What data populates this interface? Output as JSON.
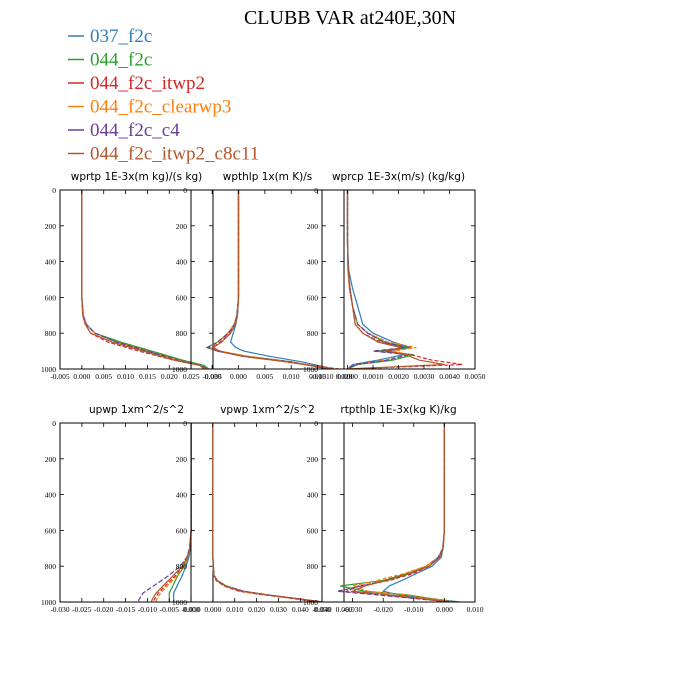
{
  "figure": {
    "title": "CLUBB VAR at240E,30N"
  },
  "legend": [
    {
      "label": "037_f2c",
      "color": "#2f7fb8"
    },
    {
      "label": "044_f2c",
      "color": "#2ca02c"
    },
    {
      "label": "044_f2c_itwp2",
      "color": "#d62728"
    },
    {
      "label": "044_f2c_clearwp3",
      "color": "#ff7f0e"
    },
    {
      "label": "044_f2c_c4",
      "color": "#6a3d9a"
    },
    {
      "label": "044_f2c_itwp2_c8c11",
      "color": "#b5562a"
    }
  ],
  "chart_data": [
    {
      "type": "line",
      "title": "wprtp  1E-3x(m kg)/(s kg)",
      "xlim": [
        -0.005,
        0.03
      ],
      "xticks": [
        "-0.005",
        "0.000",
        "0.005",
        "0.010",
        "0.015",
        "0.020",
        "0.025",
        "0.030"
      ],
      "xtick_values": [
        -0.005,
        0,
        0.005,
        0.01,
        0.015,
        0.02,
        0.025,
        0.03
      ],
      "ylim": [
        0,
        1000
      ],
      "yticks": [
        "0",
        "200",
        "400",
        "600",
        "800",
        "1000"
      ],
      "y_inverted": true,
      "y": [
        0,
        200,
        400,
        600,
        700,
        750,
        800,
        850,
        900,
        950,
        980,
        1000
      ],
      "series": [
        {
          "name": "037_f2c",
          "x": [
            0,
            0,
            0,
            0,
            0.0003,
            0.001,
            0.003,
            0.008,
            0.015,
            0.022,
            0.027,
            0.029
          ]
        },
        {
          "name": "044_f2c",
          "x": [
            0,
            0,
            0,
            0,
            0.0003,
            0.001,
            0.003,
            0.009,
            0.016,
            0.023,
            0.028,
            0.029
          ]
        },
        {
          "name": "044_f2c_itwp2",
          "x": [
            0,
            0,
            0,
            0,
            0.0002,
            0.0008,
            0.002,
            0.006,
            0.013,
            0.021,
            0.027,
            0.028
          ]
        },
        {
          "name": "044_f2c_clearwp3",
          "x": [
            0,
            0,
            0,
            0,
            0.0003,
            0.001,
            0.003,
            0.008,
            0.015,
            0.022,
            0.027,
            0.029
          ]
        },
        {
          "name": "044_f2c_c4",
          "x": [
            0,
            0,
            0,
            0,
            0.0003,
            0.001,
            0.003,
            0.008,
            0.015,
            0.022,
            0.027,
            0.029
          ]
        },
        {
          "name": "044_f2c_itwp2_c8c11",
          "x": [
            0,
            0,
            0,
            0,
            0.0002,
            0.0008,
            0.002,
            0.007,
            0.014,
            0.021,
            0.027,
            0.028
          ]
        }
      ]
    },
    {
      "type": "line",
      "title": "wpthlp  1x(m K)/s",
      "xlim": [
        -0.009,
        0.02
      ],
      "xticks": [
        "-0.005",
        "0.000",
        "0.005",
        "0.010",
        "0.015",
        "0.020"
      ],
      "xtick_values": [
        -0.005,
        0,
        0.005,
        0.01,
        0.015,
        0.02
      ],
      "ylim": [
        0,
        1000
      ],
      "yticks": [
        "0",
        "200",
        "400",
        "600",
        "800",
        "1000"
      ],
      "y_inverted": true,
      "y": [
        0,
        200,
        400,
        600,
        700,
        750,
        800,
        850,
        880,
        900,
        930,
        960,
        1000
      ],
      "series": [
        {
          "name": "037_f2c",
          "x": [
            0,
            0,
            0,
            0,
            -0.0002,
            -0.0005,
            -0.001,
            -0.0015,
            -0.0005,
            0.001,
            0.006,
            0.012,
            0.018
          ]
        },
        {
          "name": "044_f2c",
          "x": [
            0,
            0,
            0,
            0,
            -0.0003,
            -0.0008,
            -0.002,
            -0.004,
            -0.006,
            -0.004,
            0.002,
            0.01,
            0.017
          ]
        },
        {
          "name": "044_f2c_itwp2",
          "x": [
            0,
            0,
            0,
            0,
            -0.0002,
            -0.0006,
            -0.0015,
            -0.0035,
            -0.005,
            -0.004,
            0.001,
            0.009,
            0.019
          ]
        },
        {
          "name": "044_f2c_clearwp3",
          "x": [
            0,
            0,
            0,
            0,
            -0.0003,
            -0.0008,
            -0.002,
            -0.004,
            -0.0055,
            -0.0035,
            0.002,
            0.01,
            0.018
          ]
        },
        {
          "name": "044_f2c_c4",
          "x": [
            0,
            0,
            0,
            0,
            -0.0003,
            -0.0007,
            -0.0018,
            -0.004,
            -0.0058,
            -0.004,
            0.001,
            0.01,
            0.017
          ]
        },
        {
          "name": "044_f2c_itwp2_c8c11",
          "x": [
            0,
            0,
            0,
            0,
            -0.0002,
            -0.0006,
            -0.0015,
            -0.0032,
            -0.0048,
            -0.0035,
            0.001,
            0.009,
            0.018
          ]
        }
      ]
    },
    {
      "type": "line",
      "title": "wprcp  1E-3x(m/s) (kg/kg)",
      "xlim": [
        -0.001,
        0.005
      ],
      "xticks": [
        "-0.0010",
        "0.0000",
        "0.0010",
        "0.0020",
        "0.0030",
        "0.0040",
        "0.0050"
      ],
      "xtick_values": [
        -0.001,
        0,
        0.001,
        0.002,
        0.003,
        0.004,
        0.005
      ],
      "ylim": [
        0,
        1000
      ],
      "yticks": [
        "0",
        "200",
        "400",
        "600",
        "800",
        "1000"
      ],
      "y_inverted": true,
      "y": [
        0,
        300,
        450,
        550,
        650,
        750,
        800,
        850,
        880,
        900,
        920,
        950,
        975,
        1000
      ],
      "series": [
        {
          "name": "037_f2c",
          "x": [
            0,
            0,
            5e-05,
            0.0002,
            0.0004,
            0.0006,
            0.001,
            0.0018,
            0.0025,
            0.0015,
            0.0022,
            0.0012,
            0.0002,
            0
          ]
        },
        {
          "name": "044_f2c",
          "x": [
            0,
            0,
            3e-05,
            0.0001,
            0.0002,
            0.0004,
            0.0008,
            0.0015,
            0.0024,
            0.0012,
            0.0026,
            0.0018,
            0.0004,
            0
          ]
        },
        {
          "name": "044_f2c_itwp2",
          "x": [
            0,
            0,
            2e-05,
            8e-05,
            0.0002,
            0.0003,
            0.0006,
            0.0013,
            0.0022,
            0.0015,
            0.0025,
            0.0033,
            0.0045,
            0
          ]
        },
        {
          "name": "044_f2c_clearwp3",
          "x": [
            0,
            0,
            3e-05,
            0.0001,
            0.0002,
            0.0004,
            0.0008,
            0.0016,
            0.0027,
            0.0018,
            0.0024,
            0.0015,
            0.0003,
            0
          ]
        },
        {
          "name": "044_f2c_c4",
          "x": [
            0,
            0,
            3e-05,
            0.0001,
            0.0002,
            0.0004,
            0.0008,
            0.0014,
            0.0023,
            0.001,
            0.0024,
            0.0016,
            0.0003,
            0
          ]
        },
        {
          "name": "044_f2c_itwp2_c8c11",
          "x": [
            0,
            0,
            2e-05,
            8e-05,
            0.0002,
            0.0003,
            0.0006,
            0.0012,
            0.0021,
            0.0016,
            0.0023,
            0.0028,
            0.0038,
            0
          ]
        }
      ]
    },
    {
      "type": "line",
      "title": "upwp  1xm^2/s^2",
      "xlim": [
        -0.03,
        0.005
      ],
      "xticks": [
        "-0.030",
        "-0.025",
        "-0.020",
        "-0.015",
        "-0.010",
        "-0.005",
        "0.000"
      ],
      "xtick_values": [
        -0.03,
        -0.025,
        -0.02,
        -0.015,
        -0.01,
        -0.005,
        0
      ],
      "ylim": [
        0,
        1000
      ],
      "yticks": [
        "0",
        "200",
        "400",
        "600",
        "800",
        "1000"
      ],
      "y_inverted": true,
      "y": [
        0,
        200,
        400,
        600,
        700,
        750,
        800,
        850,
        900,
        950,
        990,
        1000
      ],
      "series": [
        {
          "name": "037_f2c",
          "x": [
            0,
            0,
            0,
            0,
            -0.0002,
            -0.0005,
            -0.0012,
            -0.002,
            -0.003,
            -0.004,
            -0.004,
            -0.004
          ]
        },
        {
          "name": "044_f2c",
          "x": [
            0,
            0,
            0,
            0,
            -0.0003,
            -0.0008,
            -0.0015,
            -0.003,
            -0.004,
            -0.005,
            -0.005,
            -0.005
          ]
        },
        {
          "name": "044_f2c_itwp2",
          "x": [
            0,
            0,
            0,
            0,
            -0.0003,
            -0.0008,
            -0.0018,
            -0.0035,
            -0.0055,
            -0.0075,
            -0.0085,
            -0.0085
          ]
        },
        {
          "name": "044_f2c_clearwp3",
          "x": [
            0,
            0,
            0,
            0,
            -0.0003,
            -0.0008,
            -0.0016,
            -0.0032,
            -0.005,
            -0.007,
            -0.008,
            -0.008
          ]
        },
        {
          "name": "044_f2c_c4",
          "x": [
            0,
            0,
            0,
            0,
            -0.0004,
            -0.001,
            -0.0025,
            -0.005,
            -0.008,
            -0.011,
            -0.012,
            -0.012
          ]
        },
        {
          "name": "044_f2c_itwp2_c8c11",
          "x": [
            0,
            0,
            0,
            0,
            -0.0003,
            -0.0009,
            -0.002,
            -0.004,
            -0.006,
            -0.008,
            -0.009,
            -0.009
          ]
        }
      ]
    },
    {
      "type": "line",
      "title": "vpwp  1xm^2/s^2",
      "xlim": [
        -0.01,
        0.06
      ],
      "xticks": [
        "-0.010",
        "0.000",
        "0.010",
        "0.020",
        "0.030",
        "0.040",
        "0.050",
        "0.060"
      ],
      "xtick_values": [
        -0.01,
        0,
        0.01,
        0.02,
        0.03,
        0.04,
        0.05,
        0.06
      ],
      "ylim": [
        0,
        1000
      ],
      "yticks": [
        "0",
        "200",
        "400",
        "600",
        "800",
        "1000"
      ],
      "y_inverted": true,
      "y": [
        0,
        200,
        400,
        600,
        750,
        850,
        880,
        910,
        940,
        960,
        980,
        1000
      ],
      "series": [
        {
          "name": "037_f2c",
          "x": [
            0,
            0,
            0,
            0,
            0,
            0.0005,
            0.002,
            0.006,
            0.014,
            0.025,
            0.038,
            0.05
          ]
        },
        {
          "name": "044_f2c",
          "x": [
            0,
            0,
            0,
            0,
            0,
            0.0005,
            0.002,
            0.006,
            0.014,
            0.025,
            0.038,
            0.05
          ]
        },
        {
          "name": "044_f2c_itwp2",
          "x": [
            0,
            0,
            0,
            0,
            0,
            0.0003,
            0.0015,
            0.005,
            0.012,
            0.023,
            0.036,
            0.048
          ]
        },
        {
          "name": "044_f2c_clearwp3",
          "x": [
            0,
            0,
            0,
            0,
            0,
            0.0005,
            0.002,
            0.006,
            0.014,
            0.025,
            0.038,
            0.05
          ]
        },
        {
          "name": "044_f2c_c4",
          "x": [
            0,
            0,
            0,
            0,
            0,
            0.0005,
            0.002,
            0.006,
            0.014,
            0.025,
            0.038,
            0.05
          ]
        },
        {
          "name": "044_f2c_itwp2_c8c11",
          "x": [
            0,
            0,
            0,
            0,
            0,
            0.0004,
            0.0018,
            0.0055,
            0.013,
            0.024,
            0.037,
            0.049
          ]
        }
      ]
    },
    {
      "type": "line",
      "title": "rtpthlp  1E-3x(kg K)/kg",
      "xlim": [
        -0.04,
        0.01
      ],
      "xticks": [
        "-0.040",
        "-0.030",
        "-0.020",
        "-0.010",
        "0.000",
        "0.010"
      ],
      "xtick_values": [
        -0.04,
        -0.03,
        -0.02,
        -0.01,
        0,
        0.01
      ],
      "ylim": [
        0,
        1000
      ],
      "yticks": [
        "0",
        "200",
        "400",
        "600",
        "800",
        "1000"
      ],
      "y_inverted": true,
      "y": [
        0,
        200,
        400,
        600,
        700,
        750,
        800,
        840,
        880,
        910,
        940,
        960,
        1000
      ],
      "series": [
        {
          "name": "037_f2c",
          "x": [
            0,
            0,
            0,
            0,
            -0.0005,
            -0.001,
            -0.004,
            -0.009,
            -0.014,
            -0.018,
            -0.02,
            -0.015,
            0.005
          ]
        },
        {
          "name": "044_f2c",
          "x": [
            0,
            0,
            0,
            0,
            -0.0005,
            -0.002,
            -0.006,
            -0.012,
            -0.02,
            -0.034,
            -0.026,
            -0.012,
            0.003
          ]
        },
        {
          "name": "044_f2c_itwp2",
          "x": [
            0,
            0,
            0,
            0,
            -0.0004,
            -0.0015,
            -0.005,
            -0.01,
            -0.018,
            -0.028,
            -0.032,
            -0.02,
            0.002
          ]
        },
        {
          "name": "044_f2c_clearwp3",
          "x": [
            0,
            0,
            0,
            0,
            -0.0006,
            -0.002,
            -0.006,
            -0.013,
            -0.022,
            -0.03,
            -0.025,
            -0.012,
            0.003
          ]
        },
        {
          "name": "044_f2c_c4",
          "x": [
            0,
            0,
            0,
            0,
            -0.0005,
            -0.002,
            -0.005,
            -0.011,
            -0.019,
            -0.027,
            -0.035,
            -0.022,
            0.002
          ]
        },
        {
          "name": "044_f2c_itwp2_c8c11",
          "x": [
            0,
            0,
            0,
            0,
            -0.0004,
            -0.0015,
            -0.005,
            -0.011,
            -0.019,
            -0.026,
            -0.03,
            -0.018,
            0.002
          ]
        }
      ]
    }
  ]
}
